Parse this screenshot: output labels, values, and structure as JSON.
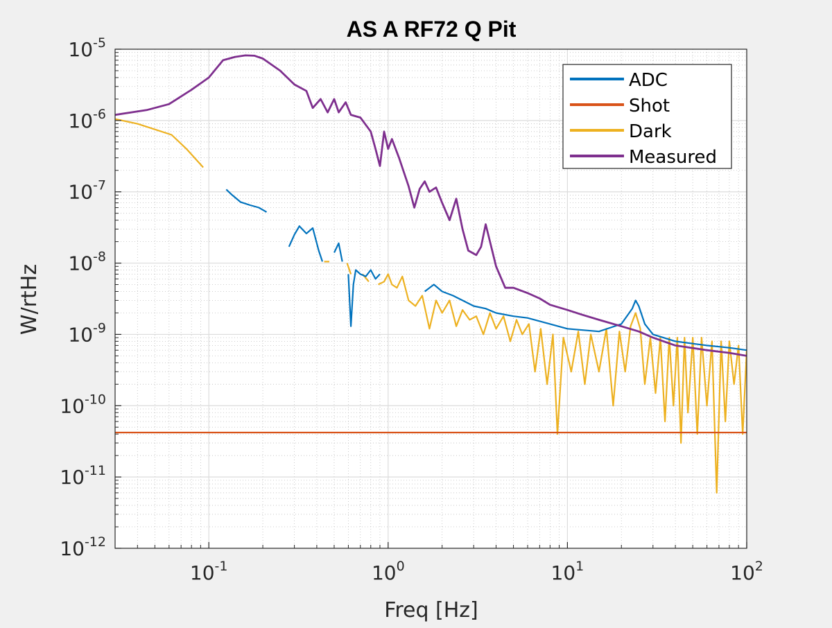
{
  "chart_data": {
    "type": "line",
    "title": "AS A RF72 Q Pit",
    "xlabel": "Freq [Hz]",
    "ylabel": "W/rtHz",
    "x_scale": "log",
    "y_scale": "log",
    "xlim": [
      0.03,
      100
    ],
    "ylim": [
      1e-12,
      1e-05
    ],
    "grid": true,
    "minor_grid": true,
    "legend_position": "top-right",
    "x_ticks": [
      {
        "value": 0.1,
        "base": "10",
        "exp": "-1"
      },
      {
        "value": 1,
        "base": "10",
        "exp": "0"
      },
      {
        "value": 10,
        "base": "10",
        "exp": "1"
      },
      {
        "value": 100,
        "base": "10",
        "exp": "2"
      }
    ],
    "y_ticks": [
      {
        "value": 1e-12,
        "base": "10",
        "exp": "-12"
      },
      {
        "value": 1e-11,
        "base": "10",
        "exp": "-11"
      },
      {
        "value": 1e-10,
        "base": "10",
        "exp": "-10"
      },
      {
        "value": 1e-09,
        "base": "10",
        "exp": "-9"
      },
      {
        "value": 1e-08,
        "base": "10",
        "exp": "-8"
      },
      {
        "value": 1e-07,
        "base": "10",
        "exp": "-7"
      },
      {
        "value": 1e-06,
        "base": "10",
        "exp": "-6"
      },
      {
        "value": 1e-05,
        "base": "10",
        "exp": "-5"
      }
    ],
    "series": [
      {
        "name": "Dark",
        "color": "#EDB120",
        "segments": [
          [
            [
              0.03,
              1.05e-06
            ],
            [
              0.04,
              9e-07
            ],
            [
              0.05,
              7.5e-07
            ],
            [
              0.062,
              6.3e-07
            ],
            [
              0.075,
              4e-07
            ],
            [
              0.093,
              2.2e-07
            ]
          ],
          [
            [
              0.44,
              1.05e-08
            ],
            [
              0.47,
              1.05e-08
            ]
          ],
          [
            [
              0.59,
              1e-08
            ],
            [
              0.62,
              7e-09
            ]
          ],
          [
            [
              0.72,
              7e-09
            ],
            [
              0.78,
              5.5e-09
            ]
          ],
          [
            [
              0.88,
              5e-09
            ],
            [
              0.95,
              5.5e-09
            ],
            [
              1.0,
              7e-09
            ],
            [
              1.05,
              5e-09
            ],
            [
              1.12,
              4.5e-09
            ],
            [
              1.2,
              6.5e-09
            ],
            [
              1.3,
              3e-09
            ],
            [
              1.42,
              2.5e-09
            ],
            [
              1.55,
              3.5e-09
            ],
            [
              1.7,
              1.2e-09
            ],
            [
              1.85,
              3e-09
            ],
            [
              2.0,
              2e-09
            ],
            [
              2.2,
              3e-09
            ],
            [
              2.4,
              1.3e-09
            ],
            [
              2.6,
              2.2e-09
            ],
            [
              2.85,
              1.6e-09
            ],
            [
              3.1,
              1.8e-09
            ],
            [
              3.4,
              1e-09
            ],
            [
              3.7,
              2e-09
            ],
            [
              4.0,
              1.2e-09
            ],
            [
              4.4,
              1.8e-09
            ],
            [
              4.8,
              8e-10
            ],
            [
              5.2,
              1.6e-09
            ],
            [
              5.6,
              1e-09
            ],
            [
              6.1,
              1.4e-09
            ],
            [
              6.6,
              3e-10
            ],
            [
              7.1,
              1.2e-09
            ],
            [
              7.7,
              2e-10
            ],
            [
              8.3,
              1e-09
            ],
            [
              8.8,
              4e-11
            ],
            [
              9.5,
              9e-10
            ],
            [
              10.5,
              3e-10
            ],
            [
              11.5,
              1.1e-09
            ],
            [
              12.5,
              2e-10
            ],
            [
              13.5,
              1e-09
            ],
            [
              15,
              3e-10
            ],
            [
              16.5,
              1.2e-09
            ],
            [
              18,
              1e-10
            ],
            [
              19.5,
              1.1e-09
            ],
            [
              21,
              3e-10
            ],
            [
              22.5,
              1.3e-09
            ],
            [
              24,
              2e-09
            ],
            [
              25.5,
              1.2e-09
            ],
            [
              27,
              2e-10
            ],
            [
              29,
              9e-10
            ],
            [
              31,
              1.5e-10
            ],
            [
              33,
              9e-10
            ],
            [
              35,
              6e-11
            ],
            [
              37,
              9e-10
            ],
            [
              39,
              1e-10
            ],
            [
              41,
              9e-10
            ],
            [
              43,
              3e-11
            ],
            [
              45,
              9e-10
            ],
            [
              47,
              8e-11
            ],
            [
              50,
              9e-10
            ],
            [
              53,
              4e-11
            ],
            [
              56,
              9e-10
            ],
            [
              60,
              1e-10
            ],
            [
              64,
              8e-10
            ],
            [
              68,
              6e-12
            ],
            [
              72,
              8e-10
            ],
            [
              76,
              6e-11
            ],
            [
              80,
              8e-10
            ],
            [
              85,
              2e-10
            ],
            [
              90,
              7e-10
            ],
            [
              95,
              4e-11
            ],
            [
              100,
              6e-10
            ]
          ]
        ]
      },
      {
        "name": "ADC",
        "color": "#0072BD",
        "segments": [
          [
            [
              0.125,
              1.08e-07
            ],
            [
              0.135,
              9e-08
            ],
            [
              0.15,
              7.2e-08
            ],
            [
              0.17,
              6.5e-08
            ],
            [
              0.19,
              6e-08
            ],
            [
              0.21,
              5.2e-08
            ]
          ],
          [
            [
              0.28,
              1.7e-08
            ],
            [
              0.3,
              2.5e-08
            ],
            [
              0.32,
              3.3e-08
            ],
            [
              0.35,
              2.6e-08
            ],
            [
              0.38,
              3.1e-08
            ],
            [
              0.41,
              1.5e-08
            ],
            [
              0.43,
              1.05e-08
            ]
          ],
          [
            [
              0.5,
              1.4e-08
            ],
            [
              0.53,
              1.9e-08
            ],
            [
              0.555,
              1.05e-08
            ]
          ],
          [
            [
              0.6,
              7e-09
            ],
            [
              0.62,
              1.3e-09
            ],
            [
              0.64,
              5e-09
            ],
            [
              0.66,
              8e-09
            ],
            [
              0.7,
              7e-09
            ],
            [
              0.75,
              6.5e-09
            ],
            [
              0.8,
              8e-09
            ],
            [
              0.85,
              6e-09
            ],
            [
              0.9,
              7e-09
            ]
          ],
          [
            [
              1.6,
              4e-09
            ],
            [
              1.8,
              5e-09
            ],
            [
              2.0,
              4e-09
            ],
            [
              2.3,
              3.5e-09
            ],
            [
              2.6,
              3e-09
            ],
            [
              3.0,
              2.5e-09
            ],
            [
              3.5,
              2.3e-09
            ],
            [
              4.0,
              2e-09
            ],
            [
              5.0,
              1.8e-09
            ],
            [
              6.0,
              1.7e-09
            ],
            [
              8.0,
              1.4e-09
            ],
            [
              10,
              1.2e-09
            ],
            [
              15,
              1.1e-09
            ],
            [
              20,
              1.4e-09
            ],
            [
              23,
              2.3e-09
            ],
            [
              24,
              3e-09
            ],
            [
              25,
              2.5e-09
            ],
            [
              27,
              1.4e-09
            ],
            [
              30,
              1e-09
            ],
            [
              40,
              8e-10
            ],
            [
              60,
              7e-10
            ],
            [
              80,
              6.5e-10
            ],
            [
              100,
              6e-10
            ]
          ]
        ]
      },
      {
        "name": "Shot",
        "color": "#D95319",
        "segments": [
          [
            [
              0.03,
              4.2e-11
            ],
            [
              100,
              4.2e-11
            ]
          ]
        ]
      },
      {
        "name": "Measured",
        "color": "#7E2F8E",
        "segments": [
          [
            [
              0.03,
              1.2e-06
            ],
            [
              0.045,
              1.4e-06
            ],
            [
              0.06,
              1.7e-06
            ],
            [
              0.08,
              2.7e-06
            ],
            [
              0.1,
              4e-06
            ],
            [
              0.12,
              7e-06
            ],
            [
              0.14,
              7.8e-06
            ],
            [
              0.16,
              8.2e-06
            ],
            [
              0.18,
              8.1e-06
            ],
            [
              0.2,
              7.4e-06
            ],
            [
              0.25,
              5e-06
            ],
            [
              0.3,
              3.2e-06
            ],
            [
              0.35,
              2.6e-06
            ],
            [
              0.38,
              1.5e-06
            ],
            [
              0.42,
              2e-06
            ],
            [
              0.46,
              1.3e-06
            ],
            [
              0.5,
              2e-06
            ],
            [
              0.53,
              1.3e-06
            ],
            [
              0.58,
              1.8e-06
            ],
            [
              0.62,
              1.2e-06
            ],
            [
              0.7,
              1.1e-06
            ],
            [
              0.8,
              7e-07
            ],
            [
              0.85,
              4e-07
            ],
            [
              0.9,
              2.3e-07
            ],
            [
              0.95,
              7e-07
            ],
            [
              1.0,
              4e-07
            ],
            [
              1.05,
              5.5e-07
            ],
            [
              1.15,
              3e-07
            ],
            [
              1.3,
              1.2e-07
            ],
            [
              1.4,
              6e-08
            ],
            [
              1.5,
              1.1e-07
            ],
            [
              1.6,
              1.4e-07
            ],
            [
              1.7,
              1e-07
            ],
            [
              1.85,
              1.15e-07
            ],
            [
              2.0,
              7e-08
            ],
            [
              2.2,
              4e-08
            ],
            [
              2.4,
              8e-08
            ],
            [
              2.6,
              3e-08
            ],
            [
              2.8,
              1.5e-08
            ],
            [
              3.1,
              1.3e-08
            ],
            [
              3.3,
              1.7e-08
            ],
            [
              3.5,
              3.5e-08
            ],
            [
              3.7,
              2e-08
            ],
            [
              4.0,
              9e-09
            ],
            [
              4.5,
              4.5e-09
            ],
            [
              5.0,
              4.5e-09
            ],
            [
              6.0,
              3.8e-09
            ],
            [
              7.0,
              3.2e-09
            ],
            [
              8.0,
              2.6e-09
            ],
            [
              10,
              2.2e-09
            ],
            [
              12,
              1.9e-09
            ],
            [
              15,
              1.6e-09
            ],
            [
              20,
              1.3e-09
            ],
            [
              25,
              1.1e-09
            ],
            [
              30,
              9e-10
            ],
            [
              40,
              7e-10
            ],
            [
              60,
              6e-10
            ],
            [
              80,
              5.5e-10
            ],
            [
              100,
              5e-10
            ]
          ]
        ]
      }
    ]
  }
}
